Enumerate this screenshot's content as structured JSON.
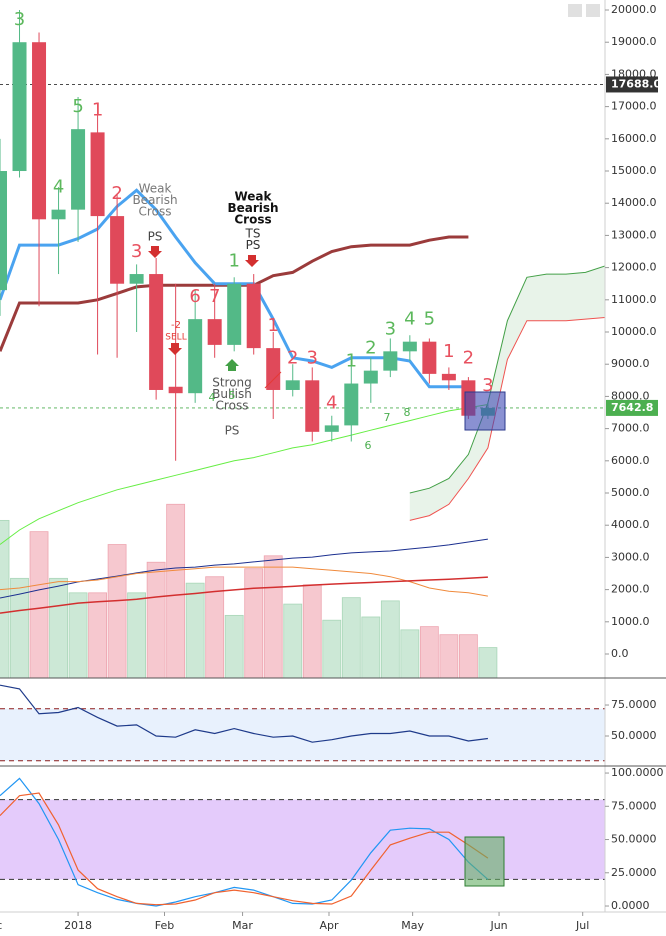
{
  "chart_data": [
    {
      "type": "candlestick",
      "x": [
        -28,
        -21,
        -14,
        -7,
        0,
        7,
        14,
        21,
        28,
        35,
        42,
        49,
        56,
        63,
        70,
        77,
        84,
        91,
        98,
        105,
        112,
        119,
        126,
        133,
        140,
        147
      ],
      "open": [
        11300,
        15000,
        19000,
        13500,
        13800,
        16200,
        13600,
        11500,
        11800,
        8300,
        8100,
        10400,
        9600,
        11500,
        9500,
        8200,
        8500,
        6900,
        7100,
        8400,
        8800,
        9400,
        9700,
        8700,
        8500,
        7400
      ],
      "high": [
        16000,
        20000,
        19300,
        14500,
        17300,
        17100,
        14300,
        12100,
        12300,
        11500,
        11300,
        11500,
        11700,
        11800,
        10000,
        9000,
        8900,
        7400,
        9200,
        9200,
        9800,
        9900,
        9800,
        8900,
        8600,
        7800
      ],
      "low": [
        10500,
        14800,
        10800,
        11800,
        12800,
        9300,
        9200,
        10000,
        7900,
        6000,
        7800,
        9200,
        9400,
        9300,
        7300,
        8000,
        6600,
        6600,
        6600,
        7800,
        8600,
        9100,
        8400,
        8200,
        7300,
        7300
      ],
      "close": [
        15000,
        19000,
        13500,
        13800,
        16300,
        13600,
        11500,
        11800,
        8200,
        8100,
        10400,
        9600,
        11500,
        9500,
        8200,
        8500,
        6900,
        7100,
        8400,
        8800,
        9400,
        9700,
        8700,
        8500,
        7400,
        7642.8
      ],
      "up_color": "#53b987",
      "down_color": "#e0495a",
      "volume": [
        4150,
        2350,
        3800,
        2350,
        1900,
        1900,
        3400,
        1900,
        2850,
        4650,
        2200,
        2400,
        1200,
        2650,
        3050,
        1550,
        2150,
        1050,
        1750,
        1150,
        1650,
        750,
        850,
        600,
        600,
        200
      ],
      "volume_up_color": "#cce8d6",
      "volume_down_color": "#f6c8cf",
      "counts": [
        null,
        "3",
        null,
        "4",
        "5",
        "1",
        "2",
        "3",
        null,
        null,
        "6",
        "7",
        "1",
        null,
        "1",
        "2",
        "3",
        "4",
        "1",
        "2",
        "3",
        "4",
        "5",
        "1",
        "2",
        "3"
      ],
      "count_colors": [
        null,
        "#5cb85c",
        null,
        "#5cb85c",
        "#5cb85c",
        "#e8515f",
        "#e8515f",
        "#e8515f",
        null,
        null,
        "#e8515f",
        "#e8515f",
        "#5cb85c",
        null,
        "#e8515f",
        "#e8515f",
        "#e8515f",
        "#e8515f",
        "#5cb85c",
        "#5cb85c",
        "#5cb85c",
        "#5cb85c",
        "#5cb85c",
        "#e8515f",
        "#e8515f",
        "#e8515f"
      ],
      "lines": [
        {
          "color": "#1b2f8f",
          "width": 1,
          "values": [
            1740,
            1860,
            1990,
            2110,
            2240,
            2330,
            2420,
            2520,
            2610,
            2670,
            2700,
            2760,
            2800,
            2860,
            2920,
            2980,
            3010,
            3080,
            3140,
            3170,
            3200,
            3260,
            3320,
            3390,
            3480,
            3570
          ]
        },
        {
          "color": "#f08a3c",
          "width": 1,
          "values": [
            2000,
            2050,
            2150,
            2250,
            2250,
            2300,
            2400,
            2500,
            2550,
            2600,
            2650,
            2700,
            2700,
            2700,
            2700,
            2700,
            2650,
            2600,
            2550,
            2500,
            2400,
            2250,
            2050,
            1950,
            1900,
            1800
          ]
        },
        {
          "color": "#d32f2f",
          "width": 1.5,
          "values": [
            1270,
            1350,
            1420,
            1500,
            1580,
            1620,
            1660,
            1700,
            1770,
            1830,
            1880,
            1940,
            1990,
            2040,
            2070,
            2100,
            2140,
            2170,
            2200,
            2220,
            2250,
            2270,
            2300,
            2320,
            2350,
            2390
          ]
        },
        {
          "color": "#66ee44",
          "width": 1,
          "values": [
            3400,
            3850,
            4200,
            4450,
            4700,
            4900,
            5100,
            5250,
            5400,
            5550,
            5700,
            5850,
            6000,
            6100,
            6250,
            6400,
            6500,
            6650,
            6800,
            6950,
            7100,
            7250,
            7400,
            7550,
            7650,
            7750
          ]
        },
        {
          "color": "#9b3b3b",
          "width": 3,
          "values": [
            9400,
            10900,
            10900,
            10900,
            10900,
            11000,
            11200,
            11400,
            11450,
            11450,
            11450,
            11450,
            11450,
            11450,
            11750,
            11850,
            12200,
            12500,
            12650,
            12700,
            12700,
            12700,
            12850,
            12950,
            12950,
            null
          ]
        },
        {
          "color": "#4aa3f0",
          "width": 3,
          "values": [
            11000,
            12700,
            12700,
            12700,
            12900,
            13200,
            13900,
            14400,
            13800,
            12950,
            12150,
            11500,
            11500,
            11500,
            10400,
            9200,
            9100,
            8900,
            9200,
            9200,
            9200,
            9100,
            8300,
            8300,
            8300,
            null
          ]
        }
      ],
      "cloud": {
        "x": [
          119,
          126,
          133,
          140,
          147,
          154,
          161,
          168,
          175,
          182,
          189
        ],
        "upper": [
          5000,
          5150,
          5450,
          6200,
          7800,
          10350,
          11700,
          11800,
          11800,
          11850,
          12050
        ],
        "lower": [
          4150,
          4300,
          4650,
          5450,
          6400,
          9150,
          10350,
          10350,
          10350,
          10400,
          10450
        ],
        "upper_color": "#43a047",
        "lower_color": "#ef5350",
        "fill": "#43a047"
      },
      "price_markers": [
        {
          "value": 17688,
          "label": "17688.0",
          "color": "#333333"
        },
        {
          "value": 7642.8,
          "label": "7642.8",
          "color": "#4caf50"
        }
      ],
      "annotations": [
        [
          "Weak",
          "Bearish",
          "Cross"
        ],
        [
          "PS"
        ],
        [
          "Weak",
          "Bearish",
          "Cross"
        ],
        [
          "TS",
          "PS"
        ],
        [
          "-2"
        ],
        [
          "SELL"
        ],
        [
          "Strong",
          "Bullish",
          "Cross"
        ],
        [
          "PS"
        ],
        [
          "4"
        ],
        [
          "5"
        ],
        [
          "6"
        ],
        [
          "7"
        ],
        [
          "8"
        ]
      ],
      "xlim": [
        -28,
        189
      ],
      "ylim": [
        -745,
        20311
      ],
      "yticks": [
        {
          "value": 0,
          "label": "0.0"
        },
        {
          "value": 1000,
          "label": "1000.0"
        },
        {
          "value": 2000,
          "label": "2000.0"
        },
        {
          "value": 3000,
          "label": "3000.0"
        },
        {
          "value": 4000,
          "label": "4000.0"
        },
        {
          "value": 5000,
          "label": "5000.0"
        },
        {
          "value": 6000,
          "label": "6000.0"
        },
        {
          "value": 7000,
          "label": "7000.0"
        },
        {
          "value": 8000,
          "label": "8000.0"
        },
        {
          "value": 9000,
          "label": "9000.0"
        },
        {
          "value": 10000,
          "label": "10000.0"
        },
        {
          "value": 11000,
          "label": "11000.0"
        },
        {
          "value": 12000,
          "label": "12000.0"
        },
        {
          "value": 13000,
          "label": "13000.0"
        },
        {
          "value": 14000,
          "label": "14000.0"
        },
        {
          "value": 15000,
          "label": "15000.0"
        },
        {
          "value": 16000,
          "label": "16000.0"
        },
        {
          "value": 17000,
          "label": "17000.0"
        },
        {
          "value": 18000,
          "label": "18000.0"
        },
        {
          "value": 19000,
          "label": "19000.0"
        },
        {
          "value": 20000,
          "label": "20000.0"
        }
      ]
    },
    {
      "type": "line",
      "x": [
        -28,
        -21,
        -14,
        -7,
        0,
        7,
        14,
        21,
        28,
        35,
        42,
        49,
        56,
        63,
        70,
        77,
        84,
        91,
        98,
        105,
        112,
        119,
        126,
        133,
        140,
        147
      ],
      "series": [
        {
          "color": "#1e3a8a",
          "values": [
            91,
            88,
            68,
            69,
            73,
            65,
            58,
            59,
            50,
            49,
            55,
            52,
            56,
            52,
            49,
            50,
            45,
            47,
            50,
            52,
            52,
            54,
            50,
            50,
            46,
            48
          ]
        }
      ],
      "band": [
        30,
        72
      ],
      "band_color": "#e8f1fd",
      "band_line_color": "#8b1a1a",
      "xlim": [
        -28,
        189
      ],
      "ylim": [
        25.8,
        96.8
      ],
      "yticks": [
        {
          "value": 75,
          "label": "75.0000"
        },
        {
          "value": 50,
          "label": "50.0000"
        }
      ]
    },
    {
      "type": "line",
      "x": [
        -28,
        -21,
        -14,
        -7,
        0,
        7,
        14,
        21,
        28,
        35,
        42,
        49,
        56,
        63,
        70,
        77,
        84,
        91,
        98,
        105,
        112,
        119,
        126,
        133,
        140,
        147
      ],
      "series": [
        {
          "color": "#2196f3",
          "values": [
            83,
            96,
            77,
            50,
            16,
            10,
            5,
            2,
            0,
            3,
            7,
            10,
            14,
            12,
            7,
            2,
            1.5,
            4.5,
            19.5,
            40,
            57,
            58.5,
            58,
            50,
            33,
            20
          ]
        },
        {
          "color": "#f0622f",
          "values": [
            68,
            83,
            85,
            61,
            27,
            13,
            7,
            2,
            1,
            1.5,
            4.5,
            10,
            12,
            10,
            7,
            4,
            2,
            1.5,
            7.5,
            27,
            46,
            51,
            55.5,
            55.5,
            46,
            36
          ]
        }
      ],
      "band": [
        20,
        80
      ],
      "band_color": "#e4cbfb",
      "band_line_color": "#333333",
      "xlim": [
        -28,
        189
      ],
      "ylim": [
        -4.5,
        105.3
      ],
      "yticks": [
        {
          "value": 100,
          "label": "100.0000"
        },
        {
          "value": 75,
          "label": "75.0000"
        },
        {
          "value": 50,
          "label": "50.0000"
        },
        {
          "value": 25,
          "label": "25.0000"
        },
        {
          "value": 0,
          "label": "0.0000"
        }
      ],
      "xticks": [
        {
          "value": -31,
          "label": "Dec"
        },
        {
          "value": 0,
          "label": "2018"
        },
        {
          "value": 31,
          "label": "Feb"
        },
        {
          "value": 59,
          "label": "Mar"
        },
        {
          "value": 90,
          "label": "Apr"
        },
        {
          "value": 120,
          "label": "May"
        },
        {
          "value": 151,
          "label": "Jun"
        },
        {
          "value": 181,
          "label": "Jul"
        }
      ]
    }
  ]
}
